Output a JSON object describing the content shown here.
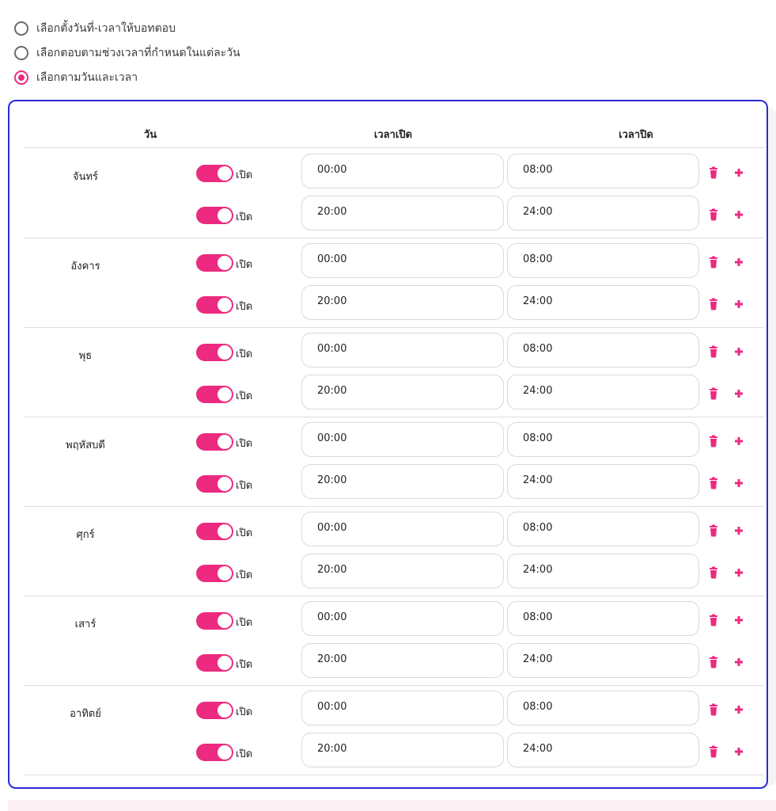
{
  "mode_options": [
    {
      "label": "เลือกตั้งวันที่-เวลาให้บอทตอบ",
      "checked": false
    },
    {
      "label": "เลือกตอบตามช่วงเวลาที่กำหนดในแต่ละวัน",
      "checked": false
    },
    {
      "label": "เลือกตามวันและเวลา",
      "checked": true
    }
  ],
  "table_header": {
    "day": "วัน",
    "open_time": "เวลาเปิด",
    "close_time": "เวลาปิด"
  },
  "toggle_label": "เปิด",
  "days": [
    {
      "name": "จันทร์",
      "slots": [
        {
          "open": "00:00",
          "close": "08:00",
          "enabled": true
        },
        {
          "open": "20:00",
          "close": "24:00",
          "enabled": true
        }
      ]
    },
    {
      "name": "อังคาร",
      "slots": [
        {
          "open": "00:00",
          "close": "08:00",
          "enabled": true
        },
        {
          "open": "20:00",
          "close": "24:00",
          "enabled": true
        }
      ]
    },
    {
      "name": "พุธ",
      "slots": [
        {
          "open": "00:00",
          "close": "08:00",
          "enabled": true
        },
        {
          "open": "20:00",
          "close": "24:00",
          "enabled": true
        }
      ]
    },
    {
      "name": "พฤหัสบดี",
      "slots": [
        {
          "open": "00:00",
          "close": "08:00",
          "enabled": true
        },
        {
          "open": "20:00",
          "close": "24:00",
          "enabled": true
        }
      ]
    },
    {
      "name": "ศุกร์",
      "slots": [
        {
          "open": "00:00",
          "close": "08:00",
          "enabled": true
        },
        {
          "open": "20:00",
          "close": "24:00",
          "enabled": true
        }
      ]
    },
    {
      "name": "เสาร์",
      "slots": [
        {
          "open": "00:00",
          "close": "08:00",
          "enabled": true
        },
        {
          "open": "20:00",
          "close": "24:00",
          "enabled": true
        }
      ]
    },
    {
      "name": "อาทิตย์",
      "slots": [
        {
          "open": "00:00",
          "close": "08:00",
          "enabled": true
        },
        {
          "open": "20:00",
          "close": "24:00",
          "enabled": true
        }
      ]
    }
  ],
  "icons": {
    "delete": "trash-icon",
    "add": "plus-icon"
  },
  "colors": {
    "accent": "#ec2a7f",
    "card_border": "#2a2ad4"
  }
}
